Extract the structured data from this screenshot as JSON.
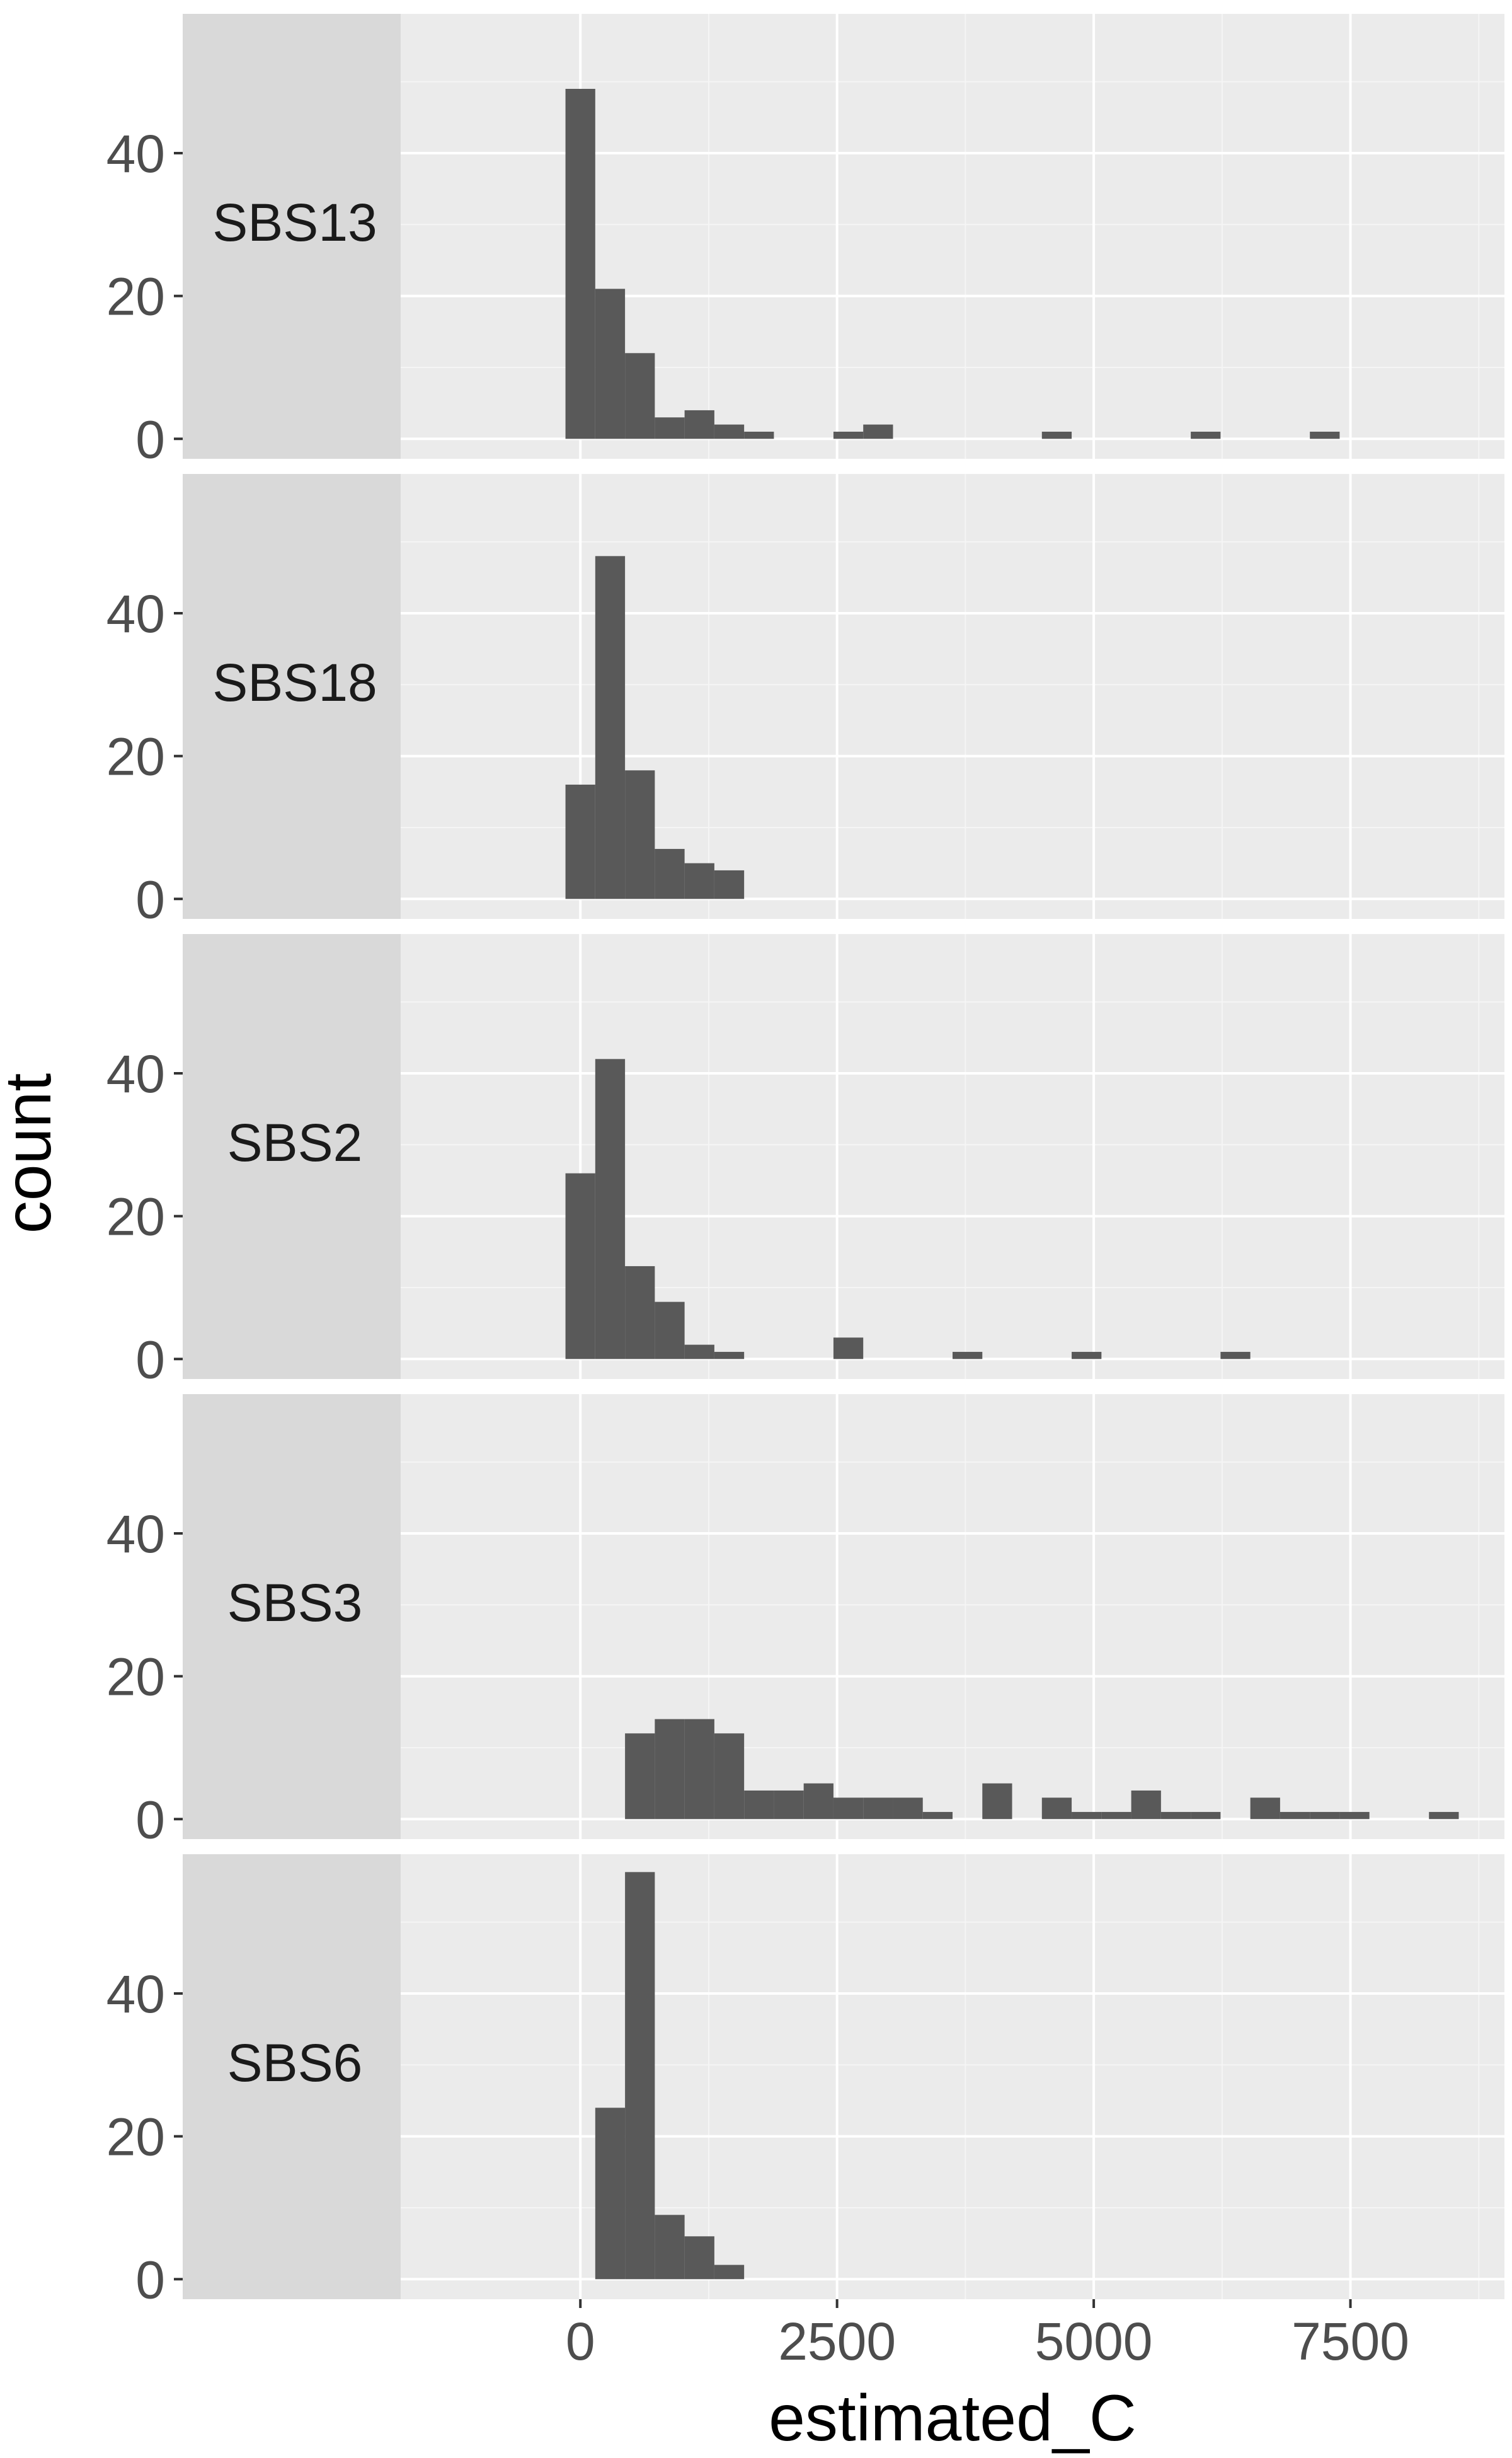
{
  "chart_data": {
    "type": "bar",
    "chart_kind": "faceted histogram",
    "xlabel": "estimated_C",
    "ylabel": "count",
    "x_ticks": [
      0,
      2500,
      5000,
      7500
    ],
    "x_tick_labels": [
      "0",
      "2500",
      "5000",
      "7500"
    ],
    "y_ticks": [
      0,
      20,
      40
    ],
    "y_tick_labels": [
      "0",
      "20",
      "40"
    ],
    "xlim": [
      -1750,
      9000
    ],
    "ylim": [
      -2.8,
      59.5
    ],
    "bin_width": 290,
    "grid": true,
    "facets": [
      {
        "label": "SBS13",
        "bins": [
          {
            "x": 0,
            "count": 49
          },
          {
            "x": 290,
            "count": 21
          },
          {
            "x": 580,
            "count": 12
          },
          {
            "x": 870,
            "count": 3
          },
          {
            "x": 1160,
            "count": 4
          },
          {
            "x": 1450,
            "count": 2
          },
          {
            "x": 1740,
            "count": 1
          },
          {
            "x": 2610,
            "count": 1
          },
          {
            "x": 2900,
            "count": 2
          },
          {
            "x": 4640,
            "count": 1
          },
          {
            "x": 6090,
            "count": 1
          },
          {
            "x": 7250,
            "count": 1
          }
        ]
      },
      {
        "label": "SBS18",
        "bins": [
          {
            "x": 0,
            "count": 16
          },
          {
            "x": 290,
            "count": 48
          },
          {
            "x": 580,
            "count": 18
          },
          {
            "x": 870,
            "count": 7
          },
          {
            "x": 1160,
            "count": 5
          },
          {
            "x": 1450,
            "count": 4
          }
        ]
      },
      {
        "label": "SBS2",
        "bins": [
          {
            "x": 0,
            "count": 26
          },
          {
            "x": 290,
            "count": 42
          },
          {
            "x": 580,
            "count": 13
          },
          {
            "x": 870,
            "count": 8
          },
          {
            "x": 1160,
            "count": 2
          },
          {
            "x": 1450,
            "count": 1
          },
          {
            "x": 2610,
            "count": 3
          },
          {
            "x": 3770,
            "count": 1
          },
          {
            "x": 4930,
            "count": 1
          },
          {
            "x": 6380,
            "count": 1
          }
        ]
      },
      {
        "label": "SBS3",
        "bins": [
          {
            "x": 580,
            "count": 12
          },
          {
            "x": 870,
            "count": 14
          },
          {
            "x": 1160,
            "count": 14
          },
          {
            "x": 1450,
            "count": 12
          },
          {
            "x": 1740,
            "count": 4
          },
          {
            "x": 2030,
            "count": 4
          },
          {
            "x": 2320,
            "count": 5
          },
          {
            "x": 2610,
            "count": 3
          },
          {
            "x": 2900,
            "count": 3
          },
          {
            "x": 3190,
            "count": 3
          },
          {
            "x": 3480,
            "count": 1
          },
          {
            "x": 4060,
            "count": 5
          },
          {
            "x": 4640,
            "count": 3
          },
          {
            "x": 4930,
            "count": 1
          },
          {
            "x": 5220,
            "count": 1
          },
          {
            "x": 5510,
            "count": 4
          },
          {
            "x": 5800,
            "count": 1
          },
          {
            "x": 6090,
            "count": 1
          },
          {
            "x": 6670,
            "count": 3
          },
          {
            "x": 6960,
            "count": 1
          },
          {
            "x": 7250,
            "count": 1
          },
          {
            "x": 7540,
            "count": 1
          },
          {
            "x": 8410,
            "count": 1
          }
        ]
      },
      {
        "label": "SBS6",
        "bins": [
          {
            "x": 290,
            "count": 24
          },
          {
            "x": 580,
            "count": 57
          },
          {
            "x": 870,
            "count": 9
          },
          {
            "x": 1160,
            "count": 6
          },
          {
            "x": 1450,
            "count": 2
          }
        ]
      }
    ]
  },
  "colors": {
    "panel_bg": "#EBEBEB",
    "strip_bg": "#D9D9D9",
    "bar_fill": "#595959",
    "grid_major": "#FFFFFF",
    "tick_text": "#4D4D4D",
    "strip_text": "#1A1A1A",
    "title_text": "#000000"
  }
}
